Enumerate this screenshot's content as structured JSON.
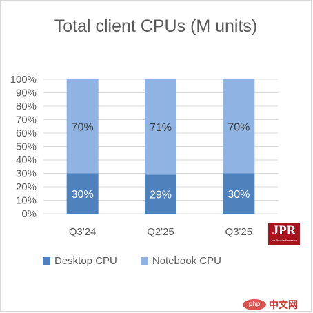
{
  "chart_data": {
    "type": "bar",
    "stacked": true,
    "title": "Total client CPUs (M units)",
    "categories": [
      "Q3'24",
      "Q2'25",
      "Q3'25"
    ],
    "series": [
      {
        "name": "Desktop CPU",
        "color": "#4f81bd",
        "values": [
          30,
          29,
          30
        ],
        "labels": [
          "30%",
          "29%",
          "30%"
        ]
      },
      {
        "name": "Notebook CPU",
        "color": "#8fb4e3",
        "values": [
          70,
          71,
          70
        ],
        "labels": [
          "70%",
          "71%",
          "70%"
        ]
      }
    ],
    "ylim": [
      0,
      100
    ],
    "yticks": [
      "0%",
      "10%",
      "20%",
      "30%",
      "40%",
      "50%",
      "60%",
      "70%",
      "80%",
      "90%",
      "100%"
    ],
    "grid": true,
    "legend": "bottom"
  },
  "logo": {
    "text": "JPR",
    "subtext": "Jon Peddie Research"
  },
  "watermark": {
    "badge": "php",
    "text": "中文网"
  }
}
